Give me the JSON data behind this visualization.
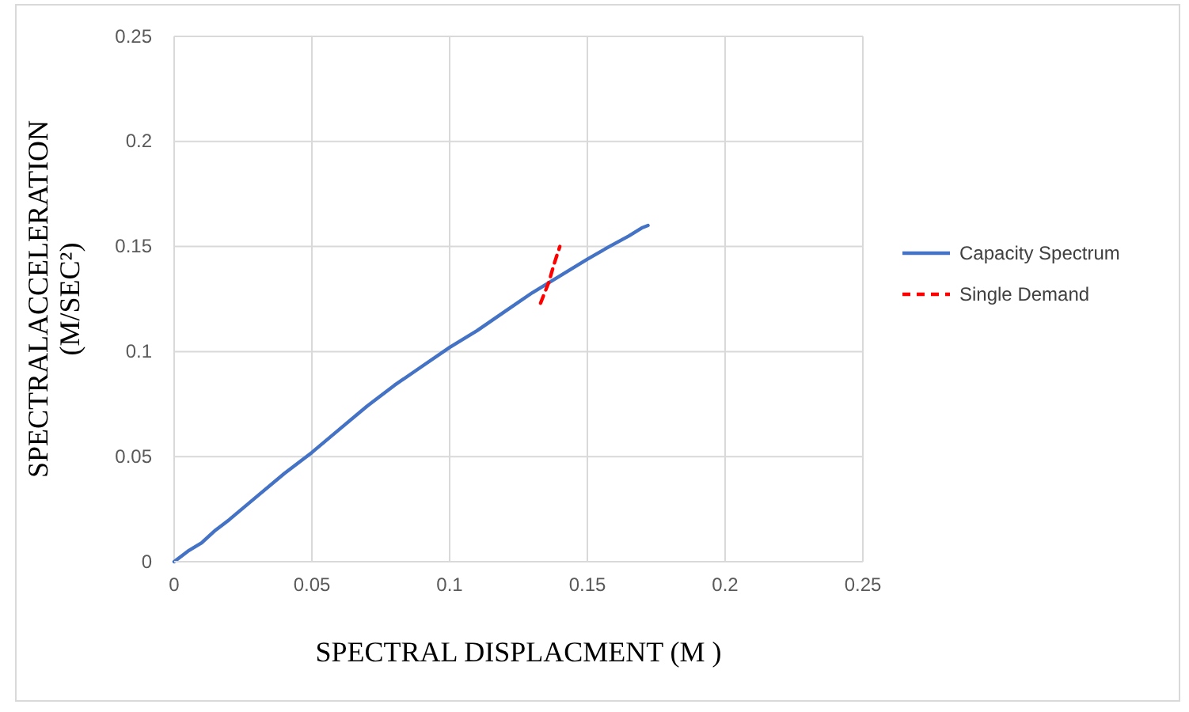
{
  "chart_data": {
    "type": "line",
    "xlabel": "SPECTRAL DISPLACMENT (M )",
    "ylabel": "SPECTRALACCELERATION\n(M/SEC²)",
    "xlim": [
      0,
      0.25
    ],
    "xticks": [
      0,
      0.05,
      0.1,
      0.15,
      0.2,
      0.25
    ],
    "ylim": [
      0,
      0.25
    ],
    "yticks": [
      0,
      0.05,
      0.1,
      0.15,
      0.2,
      0.25
    ],
    "grid": true,
    "legend": "right",
    "marker": "none",
    "series": [
      {
        "name": "Capacity Spectrum",
        "color": "#4472c4",
        "line_style": "solid",
        "x": [
          0,
          0.005,
          0.01,
          0.015,
          0.02,
          0.03,
          0.04,
          0.05,
          0.06,
          0.07,
          0.08,
          0.09,
          0.1,
          0.11,
          0.12,
          0.13,
          0.14,
          0.15,
          0.158,
          0.165,
          0.17,
          0.172
        ],
        "values": [
          0,
          0.005,
          0.009,
          0.015,
          0.02,
          0.031,
          0.042,
          0.052,
          0.063,
          0.074,
          0.084,
          0.093,
          0.102,
          0.11,
          0.119,
          0.128,
          0.136,
          0.144,
          0.15,
          0.155,
          0.159,
          0.16
        ]
      },
      {
        "name": "Single Demand",
        "color": "#ff0000",
        "line_style": "dashed",
        "x": [
          0.133,
          0.136,
          0.138,
          0.14
        ],
        "values": [
          0.123,
          0.133,
          0.142,
          0.15
        ]
      }
    ]
  }
}
